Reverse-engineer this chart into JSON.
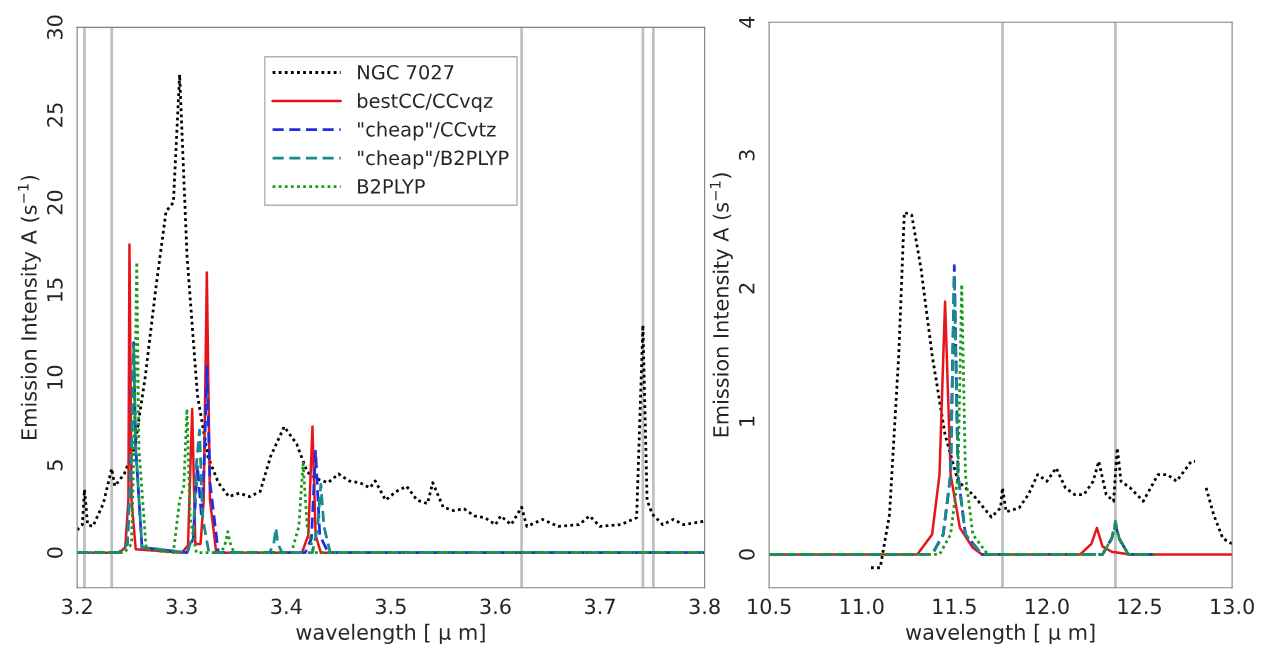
{
  "chart_data": [
    {
      "type": "line",
      "xlabel": "wavelength [ μ m]",
      "ylabel": "Emission Intensity A (s$^{−1}$)",
      "xlim": [
        3.2,
        3.8
      ],
      "ylim": [
        -2,
        30
      ],
      "xticks": [
        3.2,
        3.3,
        3.4,
        3.5,
        3.6,
        3.7,
        3.8
      ],
      "yticks": [
        0,
        5,
        10,
        15,
        20,
        25,
        30
      ],
      "grid": false,
      "legend": "top",
      "ref_lines": [
        {
          "axis": "x",
          "value": 3.207,
          "color": "#c0c0c0"
        },
        {
          "axis": "x",
          "value": 3.233,
          "color": "#c0c0c0"
        },
        {
          "axis": "x",
          "value": 3.625,
          "color": "#c0c0c0"
        },
        {
          "axis": "x",
          "value": 3.741,
          "color": "#c0c0c0"
        },
        {
          "axis": "x",
          "value": 3.751,
          "color": "#c0c0c0"
        }
      ],
      "series": [
        {
          "name": "NGC 7027",
          "color": "#000000",
          "line_style": "dotted",
          "x": [
            3.2,
            3.205,
            3.207,
            3.21,
            3.215,
            3.225,
            3.233,
            3.236,
            3.245,
            3.255,
            3.265,
            3.275,
            3.285,
            3.292,
            3.298,
            3.305,
            3.315,
            3.325,
            3.335,
            3.345,
            3.355,
            3.365,
            3.375,
            3.385,
            3.398,
            3.41,
            3.42,
            3.43,
            3.44,
            3.45,
            3.46,
            3.47,
            3.48,
            3.485,
            3.495,
            3.505,
            3.515,
            3.525,
            3.535,
            3.54,
            3.55,
            3.56,
            3.57,
            3.58,
            3.59,
            3.6,
            3.605,
            3.615,
            3.625,
            3.63,
            3.645,
            3.66,
            3.68,
            3.69,
            3.7,
            3.72,
            3.735,
            3.741,
            3.745,
            3.75,
            3.76,
            3.77,
            3.78,
            3.8
          ],
          "values": [
            1.3,
            1.6,
            3.6,
            1.6,
            1.5,
            2.8,
            4.8,
            3.8,
            4.5,
            6,
            10,
            15,
            19.5,
            20,
            27.3,
            17,
            9,
            5.5,
            4,
            3.2,
            3.4,
            3.2,
            3.5,
            5.5,
            7.2,
            6.2,
            4.6,
            4.2,
            4.0,
            4.5,
            4.1,
            4.0,
            3.7,
            4.1,
            3.0,
            3.5,
            3.8,
            3.0,
            2.8,
            4.0,
            2.6,
            2.4,
            2.5,
            2.1,
            2.0,
            1.6,
            2.1,
            1.6,
            2.6,
            1.5,
            1.9,
            1.5,
            1.6,
            2.1,
            1.5,
            1.6,
            2.0,
            13,
            3.0,
            2.2,
            1.6,
            1.9,
            1.6,
            1.8
          ]
        },
        {
          "name": "bestCC/CCvqz",
          "color": "#e8141c",
          "line_style": "solid",
          "x": [
            3.2,
            3.24,
            3.246,
            3.249,
            3.25,
            3.252,
            3.256,
            3.3,
            3.306,
            3.31,
            3.313,
            3.318,
            3.321,
            3.324,
            3.327,
            3.333,
            3.415,
            3.421,
            3.425,
            3.428,
            3.433,
            3.8
          ],
          "values": [
            0,
            0,
            0.3,
            3,
            17.6,
            3,
            0.2,
            0,
            0.4,
            8.2,
            0.5,
            0.5,
            3,
            16,
            3,
            0,
            0,
            1,
            7.2,
            1,
            0,
            0
          ]
        },
        {
          "name": "\"cheap\"/CCvtz",
          "color": "#1f2fe0",
          "line_style": "dashed",
          "x": [
            3.2,
            3.24,
            3.248,
            3.252,
            3.254,
            3.256,
            3.262,
            3.305,
            3.311,
            3.315,
            3.319,
            3.322,
            3.324,
            3.327,
            3.335,
            3.418,
            3.424,
            3.428,
            3.432,
            3.44,
            3.8
          ],
          "values": [
            0,
            0,
            0.5,
            6,
            12,
            6,
            0.3,
            0,
            0.8,
            5,
            2,
            6,
            10.7,
            4,
            0,
            0,
            0.8,
            5.8,
            1,
            0,
            0
          ]
        },
        {
          "name": "\"cheap\"/B2PLYP",
          "color": "#1a8a8a",
          "line_style": "dashed",
          "x": [
            3.2,
            3.24,
            3.248,
            3.252,
            3.254,
            3.256,
            3.262,
            3.305,
            3.311,
            3.314,
            3.317,
            3.32,
            3.326,
            3.384,
            3.388,
            3.39,
            3.392,
            3.396,
            3.425,
            3.43,
            3.433,
            3.436,
            3.442,
            3.8
          ],
          "values": [
            0,
            0,
            0.5,
            6,
            11.8,
            6,
            0.3,
            0,
            1,
            5,
            7,
            2,
            0,
            0,
            0.5,
            1.4,
            0.5,
            0,
            0,
            1.5,
            3.9,
            1.5,
            0,
            0
          ]
        },
        {
          "name": "B2PLYP",
          "color": "#1a9a1a",
          "line_style": "dotted",
          "x": [
            3.2,
            3.245,
            3.252,
            3.255,
            3.257,
            3.259,
            3.266,
            3.292,
            3.298,
            3.302,
            3.305,
            3.308,
            3.314,
            3.338,
            3.342,
            3.344,
            3.346,
            3.35,
            3.405,
            3.412,
            3.416,
            3.42,
            3.426,
            3.8
          ],
          "values": [
            0,
            0,
            0.5,
            8,
            16.6,
            6,
            0.2,
            0,
            3.0,
            3.8,
            8.2,
            2,
            0,
            0,
            0.6,
            1.2,
            0.6,
            0,
            0,
            1.5,
            5.1,
            1.5,
            0,
            0
          ]
        }
      ]
    },
    {
      "type": "line",
      "xlabel": "wavelength [ μ m]",
      "ylabel": "Emission Intensity A (s$^{−1}$)",
      "xlim": [
        10.5,
        13.0
      ],
      "ylim": [
        -0.25,
        4
      ],
      "xticks": [
        {
          "value": 10.5,
          "label": "10.5"
        },
        {
          "value": 11.0,
          "label": "11.0"
        },
        {
          "value": 11.5,
          "label": "11.5"
        },
        {
          "value": 12.0,
          "label": "12.0"
        },
        {
          "value": 12.5,
          "label": "12.5"
        },
        {
          "value": 13.0,
          "label": "13.0"
        }
      ],
      "yticks": [
        0,
        1,
        2,
        3,
        4
      ],
      "grid": false,
      "ref_lines": [
        {
          "axis": "x",
          "value": 11.76,
          "color": "#c0c0c0"
        },
        {
          "axis": "x",
          "value": 12.37,
          "color": "#c0c0c0"
        }
      ],
      "series": [
        {
          "color": "#000000",
          "line_style": "dotted",
          "x": [
            11.05,
            11.1,
            11.15,
            11.2,
            11.23,
            11.27,
            11.32,
            11.38,
            11.45,
            11.52,
            11.6,
            11.7,
            11.75,
            11.76,
            11.78,
            11.85,
            11.9,
            11.95,
            12.0,
            12.05,
            12.1,
            12.15,
            12.2,
            12.25,
            12.28,
            12.32,
            12.36,
            12.38,
            12.4,
            12.45,
            12.52,
            12.6,
            12.65,
            12.7,
            12.78,
            12.8,
            12.83,
            12.86,
            12.9,
            12.95,
            13.0
          ],
          "values": [
            -0.1,
            -0.1,
            0.3,
            1.5,
            2.57,
            2.55,
            2.15,
            1.5,
            0.9,
            0.55,
            0.45,
            0.28,
            0.35,
            0.5,
            0.32,
            0.35,
            0.45,
            0.6,
            0.55,
            0.65,
            0.5,
            0.45,
            0.45,
            0.55,
            0.7,
            0.45,
            0.4,
            0.8,
            0.55,
            0.5,
            0.4,
            0.6,
            0.6,
            0.55,
            0.7,
            0.7,
            null,
            0.5,
            0.3,
            0.12,
            0.08
          ]
        },
        {
          "color": "#e8141c",
          "line_style": "solid",
          "x": [
            10.5,
            11.3,
            11.38,
            11.42,
            11.45,
            11.48,
            11.53,
            11.6,
            11.65,
            12.18,
            12.24,
            12.27,
            12.3,
            12.35,
            12.45,
            13.0
          ],
          "values": [
            0,
            0,
            0.15,
            0.6,
            1.9,
            0.6,
            0.2,
            0.05,
            0,
            0,
            0.08,
            0.2,
            0.06,
            0.02,
            0,
            0
          ]
        },
        {
          "color": "#1f2fe0",
          "line_style": "dashed",
          "x": [
            10.5,
            11.38,
            11.44,
            11.48,
            11.5,
            11.52,
            11.56,
            11.65,
            12.3,
            12.35,
            12.37,
            12.39,
            12.44,
            12.58
          ],
          "values": [
            0,
            0,
            0.15,
            0.6,
            2.17,
            0.6,
            0.15,
            0,
            0,
            0.12,
            0.22,
            0.12,
            0,
            0
          ]
        },
        {
          "color": "#1a8a8a",
          "line_style": "dashed",
          "x": [
            10.5,
            11.38,
            11.44,
            11.48,
            11.5,
            11.52,
            11.56,
            11.65,
            12.3,
            12.35,
            12.37,
            12.39,
            12.44,
            12.58
          ],
          "values": [
            0,
            0,
            0.15,
            0.6,
            2.1,
            0.6,
            0.15,
            0,
            0,
            0.12,
            0.25,
            0.12,
            0,
            0
          ]
        },
        {
          "color": "#1a9a1a",
          "line_style": "dotted",
          "x": [
            10.5,
            11.42,
            11.48,
            11.52,
            11.54,
            11.56,
            11.6,
            11.68,
            12.3,
            12.35,
            12.37,
            12.39,
            12.44,
            12.58
          ],
          "values": [
            0,
            0,
            0.15,
            0.6,
            2.03,
            0.6,
            0.15,
            0,
            0,
            0.12,
            0.22,
            0.12,
            0,
            0
          ]
        }
      ]
    }
  ]
}
